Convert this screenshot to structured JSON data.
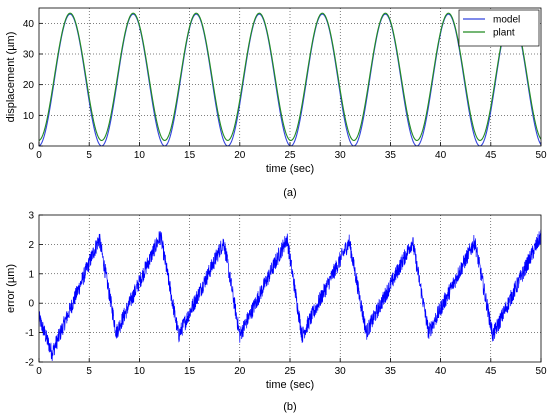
{
  "chart_data": [
    {
      "type": "line",
      "caption": "(a)",
      "xlabel": "time (sec)",
      "ylabel": "displacement (µm)",
      "xlim": [
        0,
        50
      ],
      "ylim": [
        0,
        45
      ],
      "xticks": [
        0,
        5,
        10,
        15,
        20,
        25,
        30,
        35,
        40,
        45,
        50
      ],
      "yticks": [
        0,
        10,
        20,
        30,
        40
      ],
      "grid": true,
      "legend_position": "top-right",
      "series": [
        {
          "name": "model",
          "color": "#3344dd",
          "shape": "cosine",
          "period": 6.28,
          "peak": 43.0,
          "trough": 0.0,
          "first_peak_x": 3.1,
          "x": [
            0,
            3.1,
            6.25,
            9.4,
            12.5,
            15.7,
            18.8,
            22.0,
            25.1,
            28.3,
            31.4,
            34.5,
            37.7,
            40.8,
            44.0,
            47.1,
            50
          ],
          "values": [
            0.5,
            43.0,
            0.0,
            43.0,
            0.0,
            43.0,
            0.0,
            43.0,
            0.0,
            43.0,
            0.0,
            43.0,
            0.0,
            43.0,
            0.0,
            43.0,
            0.5
          ]
        },
        {
          "name": "plant",
          "color": "#228b22",
          "shape": "cosine",
          "period": 6.28,
          "peak": 43.3,
          "trough": 1.8,
          "first_peak_x": 3.1,
          "x": [
            0,
            3.1,
            6.25,
            9.4,
            12.5,
            15.7,
            18.8,
            22.0,
            25.1,
            28.3,
            31.4,
            34.5,
            37.7,
            40.8,
            44.0,
            47.1,
            50
          ],
          "values": [
            1.0,
            43.3,
            1.8,
            43.3,
            1.8,
            43.3,
            1.8,
            43.3,
            1.8,
            43.3,
            1.8,
            43.3,
            1.8,
            43.3,
            1.8,
            43.3,
            1.0
          ]
        }
      ]
    },
    {
      "type": "line",
      "caption": "(b)",
      "xlabel": "time (sec)",
      "ylabel": "error (µm)",
      "xlim": [
        0,
        50
      ],
      "ylim": [
        -2,
        3
      ],
      "xticks": [
        0,
        5,
        10,
        15,
        20,
        25,
        30,
        35,
        40,
        45,
        50
      ],
      "yticks": [
        -2,
        -1,
        0,
        1,
        2,
        3
      ],
      "grid": true,
      "series": [
        {
          "name": "",
          "color": "#0000ff",
          "noise_amplitude": 0.28,
          "x": [
            0,
            1.3,
            6.0,
            7.7,
            12.1,
            13.9,
            18.4,
            20.0,
            24.7,
            26.2,
            30.9,
            32.6,
            37.2,
            38.8,
            43.4,
            45.2,
            50.0
          ],
          "values": [
            -0.5,
            -1.7,
            2.2,
            -1.0,
            2.3,
            -1.1,
            2.1,
            -1.1,
            2.2,
            -1.1,
            2.1,
            -1.0,
            2.1,
            -1.0,
            2.1,
            -1.1,
            2.3
          ]
        }
      ]
    }
  ]
}
